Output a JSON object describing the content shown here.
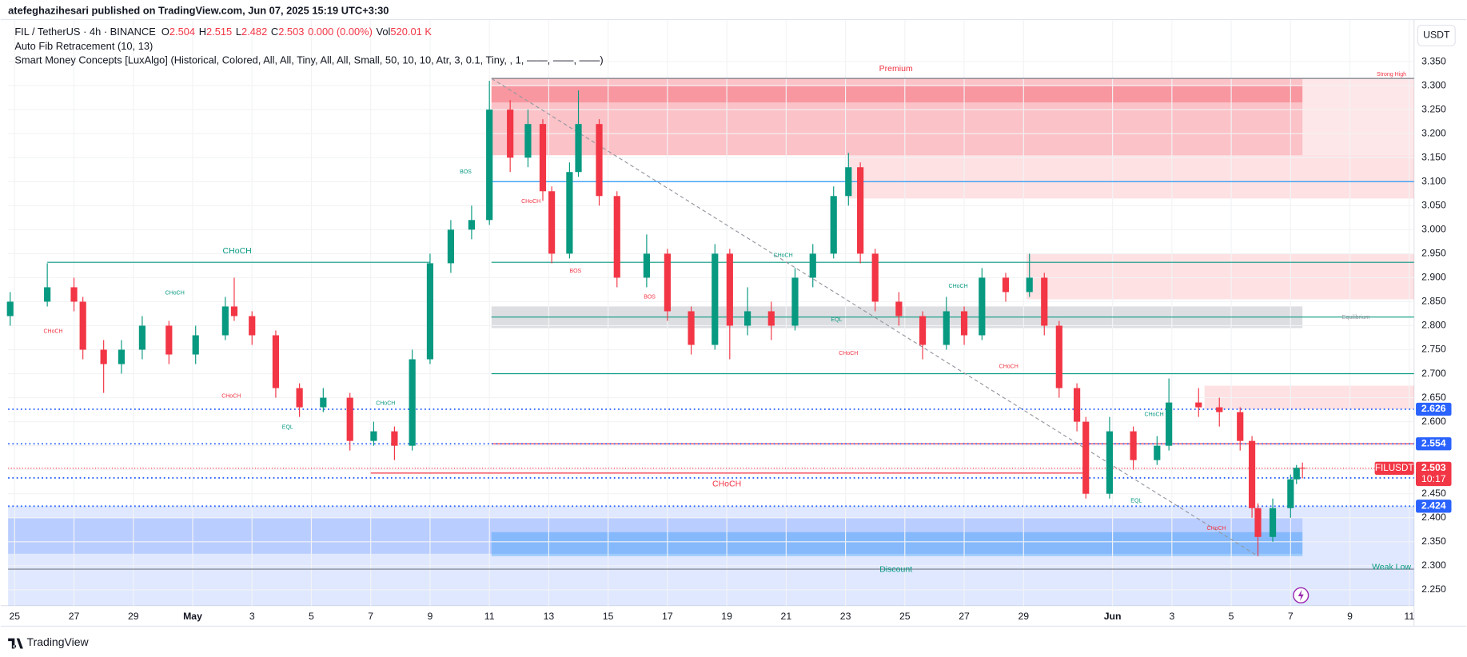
{
  "header": {
    "published": "atefeghazihesari published on TradingView.com, Jun 07, 2025 15:19 UTC+3:30",
    "symbol": "FIL / TetherUS · 4h · BINANCE",
    "o_label": "O",
    "o": "2.504",
    "h_label": "H",
    "h": "2.515",
    "l_label": "L",
    "l": "2.482",
    "c_label": "C",
    "c": "2.503",
    "change": "0.000 (0.00%)",
    "vol_label": "Vol",
    "vol": "520.01 K",
    "indicator1": "Auto Fib Retracement (10, 13)",
    "indicator2": "Smart Money Concepts [LuxAlgo] (Historical, Colored, All, All, Tiny, All, All, Small, 50, 10, 10, Atr, 3, 0.1, Tiny, , 1, ——, ——, ——)",
    "currency": "USDT",
    "brand": "TradingView"
  },
  "chart_data": {
    "type": "candlestick",
    "up_color": "#089981",
    "down_color": "#f23645",
    "grid": true,
    "xlim": [
      -0.22,
      47.16
    ],
    "ylim": [
      2.217,
      3.381
    ],
    "xticks": [
      {
        "value": 0,
        "label": "25"
      },
      {
        "value": 2,
        "label": "27"
      },
      {
        "value": 4,
        "label": "29"
      },
      {
        "value": 6,
        "label": "May"
      },
      {
        "value": 8,
        "label": "3"
      },
      {
        "value": 10,
        "label": "5"
      },
      {
        "value": 12,
        "label": "7"
      },
      {
        "value": 14,
        "label": "9"
      },
      {
        "value": 16,
        "label": "11"
      },
      {
        "value": 18,
        "label": "13"
      },
      {
        "value": 20,
        "label": "15"
      },
      {
        "value": 22,
        "label": "17"
      },
      {
        "value": 24,
        "label": "19"
      },
      {
        "value": 26,
        "label": "21"
      },
      {
        "value": 28,
        "label": "23"
      },
      {
        "value": 30,
        "label": "25"
      },
      {
        "value": 32,
        "label": "27"
      },
      {
        "value": 34,
        "label": "29"
      },
      {
        "value": 37,
        "label": "Jun"
      },
      {
        "value": 39,
        "label": "3"
      },
      {
        "value": 41,
        "label": "5"
      },
      {
        "value": 43,
        "label": "7"
      },
      {
        "value": 45,
        "label": "9"
      },
      {
        "value": 47,
        "label": "11"
      }
    ],
    "yticks": [
      {
        "value": 2.25,
        "label": "2.250"
      },
      {
        "value": 2.3,
        "label": "2.300"
      },
      {
        "value": 2.35,
        "label": "2.350"
      },
      {
        "value": 2.4,
        "label": "2.400"
      },
      {
        "value": 2.45,
        "label": "2.450"
      },
      {
        "value": 2.5,
        "label": "2.500"
      },
      {
        "value": 2.55,
        "label": "2.550"
      },
      {
        "value": 2.6,
        "label": "2.600"
      },
      {
        "value": 2.65,
        "label": "2.650"
      },
      {
        "value": 2.7,
        "label": "2.700"
      },
      {
        "value": 2.75,
        "label": "2.750"
      },
      {
        "value": 2.8,
        "label": "2.800"
      },
      {
        "value": 2.85,
        "label": "2.850"
      },
      {
        "value": 2.9,
        "label": "2.900"
      },
      {
        "value": 2.95,
        "label": "2.950"
      },
      {
        "value": 3.0,
        "label": "3.000"
      },
      {
        "value": 3.05,
        "label": "3.050"
      },
      {
        "value": 3.1,
        "label": "3.100"
      },
      {
        "value": 3.15,
        "label": "3.150"
      },
      {
        "value": 3.2,
        "label": "3.200"
      },
      {
        "value": 3.25,
        "label": "3.250"
      },
      {
        "value": 3.3,
        "label": "3.300"
      },
      {
        "value": 3.35,
        "label": "3.350"
      }
    ],
    "candles": {
      "x": [
        -0.15,
        1.1,
        2,
        2.3,
        3,
        3.6,
        4.3,
        5.2,
        6.1,
        7.1,
        7.4,
        8,
        8.8,
        9.6,
        10.4,
        11.3,
        12.1,
        12.8,
        13.4,
        14,
        14.7,
        15.4,
        16,
        16.7,
        17.3,
        17.8,
        18.1,
        18.7,
        19,
        19.7,
        20.3,
        21.3,
        22,
        22.8,
        23.6,
        24.1,
        24.7,
        25.5,
        26.3,
        26.9,
        27.6,
        28.1,
        28.5,
        29,
        29.8,
        30.6,
        31.4,
        32,
        32.6,
        33.4,
        34.2,
        34.7,
        35.2,
        35.8,
        36.1,
        36.9,
        37.7,
        38.5,
        38.9,
        39.9,
        40.6,
        41.3,
        41.7,
        41.9,
        42.4,
        43,
        43.2,
        43.4
      ],
      "open": [
        2.82,
        2.85,
        2.88,
        2.85,
        2.75,
        2.72,
        2.75,
        2.8,
        2.74,
        2.78,
        2.84,
        2.82,
        2.78,
        2.67,
        2.63,
        2.65,
        2.56,
        2.58,
        2.55,
        2.73,
        2.93,
        3.0,
        3.02,
        3.25,
        3.15,
        3.22,
        3.08,
        2.95,
        3.12,
        3.22,
        3.07,
        2.9,
        2.95,
        2.83,
        2.76,
        2.95,
        2.8,
        2.83,
        2.8,
        2.9,
        2.95,
        3.07,
        3.13,
        2.95,
        2.85,
        2.82,
        2.76,
        2.83,
        2.78,
        2.9,
        2.87,
        2.9,
        2.8,
        2.67,
        2.6,
        2.45,
        2.58,
        2.52,
        2.55,
        2.64,
        2.63,
        2.62,
        2.56,
        2.42,
        2.36,
        2.42,
        2.48,
        2.504
      ],
      "high": [
        2.87,
        2.93,
        2.9,
        2.86,
        2.77,
        2.77,
        2.82,
        2.81,
        2.8,
        2.86,
        2.9,
        2.83,
        2.79,
        2.68,
        2.67,
        2.66,
        2.6,
        2.59,
        2.75,
        2.95,
        3.02,
        3.05,
        3.31,
        3.27,
        3.25,
        3.23,
        3.09,
        3.14,
        3.29,
        3.23,
        3.08,
        2.99,
        2.96,
        2.84,
        2.97,
        2.96,
        2.88,
        2.85,
        2.92,
        2.97,
        3.09,
        3.16,
        3.14,
        2.96,
        2.87,
        2.83,
        2.86,
        2.84,
        2.92,
        2.91,
        2.95,
        2.91,
        2.81,
        2.68,
        2.61,
        2.61,
        2.59,
        2.57,
        2.69,
        2.67,
        2.65,
        2.63,
        2.57,
        2.43,
        2.44,
        2.49,
        2.51,
        2.515
      ],
      "low": [
        2.8,
        2.84,
        2.83,
        2.73,
        2.66,
        2.7,
        2.73,
        2.72,
        2.72,
        2.77,
        2.81,
        2.76,
        2.65,
        2.61,
        2.62,
        2.54,
        2.55,
        2.52,
        2.54,
        2.72,
        2.91,
        2.98,
        3.01,
        3.12,
        3.13,
        3.06,
        2.93,
        2.94,
        3.11,
        3.05,
        2.88,
        2.88,
        2.81,
        2.74,
        2.75,
        2.73,
        2.78,
        2.77,
        2.79,
        2.88,
        2.94,
        3.05,
        2.93,
        2.83,
        2.8,
        2.73,
        2.75,
        2.76,
        2.77,
        2.85,
        2.86,
        2.78,
        2.65,
        2.58,
        2.44,
        2.44,
        2.5,
        2.51,
        2.54,
        2.61,
        2.59,
        2.54,
        2.4,
        2.32,
        2.35,
        2.4,
        2.47,
        2.482
      ],
      "close": [
        2.85,
        2.88,
        2.85,
        2.75,
        2.72,
        2.75,
        2.8,
        2.74,
        2.78,
        2.84,
        2.82,
        2.78,
        2.67,
        2.63,
        2.65,
        2.56,
        2.58,
        2.55,
        2.73,
        2.93,
        3.0,
        3.02,
        3.25,
        3.15,
        3.22,
        3.08,
        2.95,
        3.12,
        3.22,
        3.07,
        2.9,
        2.95,
        2.83,
        2.76,
        2.95,
        2.8,
        2.83,
        2.8,
        2.9,
        2.95,
        3.07,
        3.13,
        2.95,
        2.85,
        2.82,
        2.76,
        2.83,
        2.78,
        2.9,
        2.87,
        2.9,
        2.8,
        2.67,
        2.6,
        2.45,
        2.58,
        2.52,
        2.55,
        2.64,
        2.63,
        2.62,
        2.56,
        2.42,
        2.36,
        2.42,
        2.48,
        2.504,
        2.503
      ]
    },
    "zones": [
      {
        "x": [
          16.07,
          43.4
        ],
        "y": [
          3.155,
          3.315
        ],
        "color": "rgba(242,54,69,0.30)"
      },
      {
        "x": [
          16.07,
          43.4
        ],
        "y": [
          3.265,
          3.3
        ],
        "color": "rgba(242,54,69,0.30)"
      },
      {
        "x": [
          43.4,
          47.16
        ],
        "y": [
          3.155,
          3.315
        ],
        "color": "rgba(242,54,69,0.12)"
      },
      {
        "x": [
          28.1,
          47.16
        ],
        "y": [
          3.065,
          3.155
        ],
        "color": "rgba(242,54,69,0.15)"
      },
      {
        "x": [
          34.1,
          47.16
        ],
        "y": [
          2.855,
          2.95
        ],
        "color": "rgba(242,54,69,0.15)"
      },
      {
        "x": [
          40.1,
          47.16
        ],
        "y": [
          2.626,
          2.675
        ],
        "color": "rgba(242,54,69,0.15)"
      },
      {
        "x": [
          16.07,
          43.4
        ],
        "y": [
          2.795,
          2.84
        ],
        "color": "rgba(120,123,134,0.25)"
      },
      {
        "x": [
          -0.22,
          47.16
        ],
        "y": [
          2.217,
          2.424
        ],
        "color": "rgba(41,98,255,0.15)"
      },
      {
        "x": [
          -0.22,
          43.4
        ],
        "y": [
          2.325,
          2.4
        ],
        "color": "rgba(41,98,255,0.20)"
      },
      {
        "x": [
          16.07,
          43.4
        ],
        "y": [
          2.32,
          2.37
        ],
        "color": "rgba(33,150,243,0.35)"
      }
    ],
    "lines": [
      {
        "x": [
          16.07,
          47.16
        ],
        "y": [
          3.315,
          3.315
        ],
        "color": "#787b86",
        "dash": "0"
      },
      {
        "x": [
          16.07,
          47.16
        ],
        "y": [
          3.1,
          3.1
        ],
        "color": "#2196f3",
        "dash": "0"
      },
      {
        "x": [
          16.07,
          47.16
        ],
        "y": [
          2.932,
          2.932
        ],
        "color": "#089981",
        "dash": "0"
      },
      {
        "x": [
          16.07,
          47.16
        ],
        "y": [
          2.818,
          2.818
        ],
        "color": "#089981",
        "dash": "0"
      },
      {
        "x": [
          16.07,
          47.16
        ],
        "y": [
          2.7,
          2.7
        ],
        "color": "#089981",
        "dash": "0"
      },
      {
        "x": [
          16.07,
          47.16
        ],
        "y": [
          2.554,
          2.554
        ],
        "color": "#f23645",
        "dash": "0"
      },
      {
        "x": [
          1.1,
          14
        ],
        "y": [
          2.932,
          2.932
        ],
        "color": "#089981",
        "dash": "0"
      },
      {
        "x": [
          12,
          36.1
        ],
        "y": [
          2.493,
          2.493
        ],
        "color": "#f23645",
        "dash": "0"
      },
      {
        "x": [
          16.07,
          41.9
        ],
        "y": [
          3.315,
          2.32
        ],
        "color": "#9598a1",
        "dash": "4 3"
      },
      {
        "x": [
          -0.22,
          47.16
        ],
        "y": [
          2.293,
          2.293
        ],
        "color": "#787b86",
        "dash": "0"
      }
    ],
    "zone_labels": [
      {
        "text": "Premium",
        "x": 29.7,
        "y": 3.335,
        "color": "#f23645"
      },
      {
        "text": "Discount",
        "x": 29.7,
        "y": 2.292,
        "color": "#089981"
      },
      {
        "text": "Equilibrium",
        "x": 45.2,
        "y": 2.817,
        "color": "#9598a1"
      },
      {
        "text": "Strong High",
        "x": 46.4,
        "y": 3.323,
        "color": "#f23645"
      },
      {
        "text": "Weak Low",
        "x": 46.4,
        "y": 2.297,
        "color": "#089981"
      }
    ],
    "annotations": [
      {
        "text": "CHoCH",
        "x": 7.5,
        "y": 2.955,
        "color": "#089981",
        "size": "big"
      },
      {
        "text": "CHoCH",
        "x": 1.3,
        "y": 2.788,
        "color": "#f23645"
      },
      {
        "text": "CHoCH",
        "x": 5.4,
        "y": 2.868,
        "color": "#089981"
      },
      {
        "text": "CHoCH",
        "x": 7.3,
        "y": 2.653,
        "color": "#f23645"
      },
      {
        "text": "EQL",
        "x": 9.2,
        "y": 2.588,
        "color": "#089981"
      },
      {
        "text": "CHoCH",
        "x": 12.5,
        "y": 2.638,
        "color": "#089981"
      },
      {
        "text": "BOS",
        "x": 15.2,
        "y": 3.12,
        "color": "#089981"
      },
      {
        "text": "CHoCH",
        "x": 17.4,
        "y": 3.059,
        "color": "#f23645"
      },
      {
        "text": "BOS",
        "x": 18.9,
        "y": 2.914,
        "color": "#f23645"
      },
      {
        "text": "BOS",
        "x": 21.4,
        "y": 2.86,
        "color": "#f23645"
      },
      {
        "text": "CHoCH",
        "x": 25.9,
        "y": 2.946,
        "color": "#089981"
      },
      {
        "text": "EQL",
        "x": 27.7,
        "y": 2.812,
        "color": "#089981"
      },
      {
        "text": "CHoCH",
        "x": 28.1,
        "y": 2.742,
        "color": "#f23645"
      },
      {
        "text": "CHoCH",
        "x": 31.8,
        "y": 2.882,
        "color": "#089981"
      },
      {
        "text": "CHoCH",
        "x": 33.5,
        "y": 2.715,
        "color": "#f23645"
      },
      {
        "text": "CHoCH",
        "x": 24,
        "y": 2.47,
        "color": "#f23645",
        "size": "big"
      },
      {
        "text": "EQL",
        "x": 37.8,
        "y": 2.435,
        "color": "#089981"
      },
      {
        "text": "CHoCH",
        "x": 38.4,
        "y": 2.615,
        "color": "#089981"
      },
      {
        "text": "CHoCH",
        "x": 40.5,
        "y": 2.378,
        "color": "#f23645"
      }
    ],
    "levels": [
      {
        "value": 2.626,
        "color": "#2962ff"
      },
      {
        "value": 2.554,
        "color": "#2962ff"
      },
      {
        "value": 2.483,
        "color": "#2962ff"
      },
      {
        "value": 2.424,
        "color": "#2962ff"
      }
    ],
    "current": {
      "name": "FILUSDT",
      "value": 2.503,
      "countdown": "10:17",
      "color": "#f23645"
    }
  }
}
